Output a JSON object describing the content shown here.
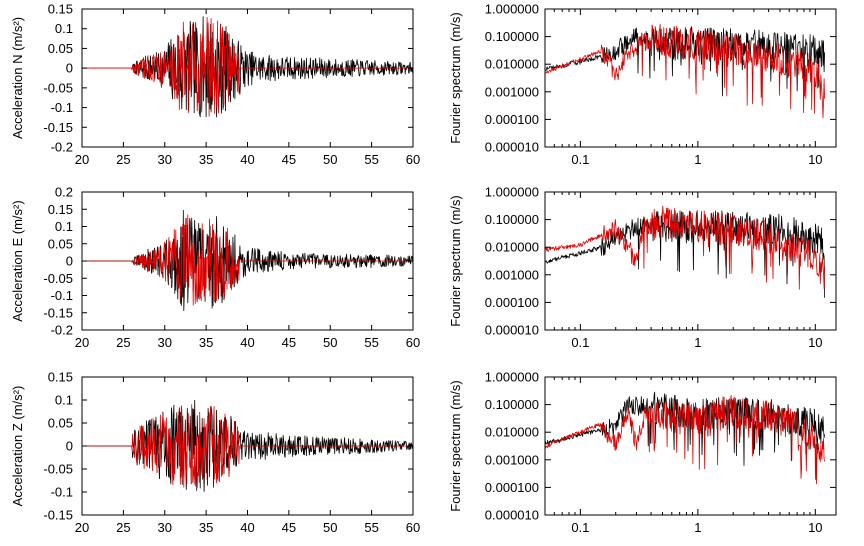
{
  "colors": {
    "observed": "#000000",
    "synthetic": "#e00000"
  },
  "chart_data": [
    {
      "type": "line",
      "component": "N",
      "ylabel": "Acceleration N (m/s²)",
      "xlim": [
        20,
        60
      ],
      "ylim": [
        -0.2,
        0.15
      ],
      "xticks": [
        "20",
        "25",
        "30",
        "35",
        "40",
        "45",
        "50",
        "55",
        "60"
      ],
      "yticks": [
        "0.15",
        "0.1",
        "0.05",
        "0",
        "-0.05",
        "-0.1",
        "-0.15",
        "-0.2"
      ],
      "onset": 26,
      "envelope": [
        [
          26,
          0.008
        ],
        [
          27,
          0.025
        ],
        [
          28,
          0.035
        ],
        [
          29,
          0.04
        ],
        [
          30,
          0.055
        ],
        [
          31,
          0.09
        ],
        [
          32,
          0.13
        ],
        [
          33,
          0.12
        ],
        [
          34,
          0.12
        ],
        [
          35,
          0.14
        ],
        [
          36,
          0.13
        ],
        [
          37,
          0.12
        ],
        [
          38,
          0.09
        ],
        [
          39,
          0.07
        ],
        [
          40,
          0.045
        ],
        [
          42,
          0.035
        ],
        [
          45,
          0.03
        ],
        [
          50,
          0.025
        ],
        [
          55,
          0.02
        ],
        [
          60,
          0.015
        ]
      ],
      "series": [
        {
          "role": "observed",
          "peak": 0.145,
          "trough": -0.16,
          "end": 60
        },
        {
          "role": "synthetic",
          "peak": 0.13,
          "trough": -0.145,
          "end": 39
        }
      ]
    },
    {
      "type": "line",
      "xscale": "log",
      "yscale": "log",
      "ylabel": "Fourier spectrum (m/s)",
      "xlim": [
        0.05,
        15
      ],
      "ylim": [
        1e-05,
        1
      ],
      "xticks": [
        "0.1",
        "1",
        "10"
      ],
      "yticks": [
        "1.000000",
        "0.100000",
        "0.010000",
        "0.001000",
        "0.000100",
        "0.000010"
      ],
      "f_max": 12,
      "series": [
        {
          "role": "observed",
          "shape": [
            [
              0.05,
              0.007
            ],
            [
              0.1,
              0.012
            ],
            [
              0.15,
              0.02
            ],
            [
              0.2,
              0.03
            ],
            [
              0.3,
              0.1
            ],
            [
              0.5,
              0.05
            ],
            [
              1,
              0.06
            ],
            [
              2,
              0.05
            ],
            [
              5,
              0.04
            ],
            [
              10,
              0.03
            ],
            [
              12,
              0.02
            ]
          ]
        },
        {
          "role": "synthetic",
          "shape": [
            [
              0.05,
              0.005
            ],
            [
              0.1,
              0.015
            ],
            [
              0.15,
              0.03
            ],
            [
              0.18,
              0.01
            ],
            [
              0.2,
              0.003
            ],
            [
              0.25,
              0.03
            ],
            [
              0.4,
              0.08
            ],
            [
              1,
              0.05
            ],
            [
              2,
              0.03
            ],
            [
              5,
              0.015
            ],
            [
              10,
              0.005
            ],
            [
              12,
              0.001
            ]
          ]
        }
      ]
    },
    {
      "type": "line",
      "component": "E",
      "ylabel": "Acceleration E (m/s²)",
      "xlim": [
        20,
        60
      ],
      "ylim": [
        -0.2,
        0.2
      ],
      "xticks": [
        "20",
        "25",
        "30",
        "35",
        "40",
        "45",
        "50",
        "55",
        "60"
      ],
      "yticks": [
        "0.2",
        "0.15",
        "0.1",
        "0.05",
        "0",
        "-0.05",
        "-0.1",
        "-0.15",
        "-0.2"
      ],
      "onset": 26,
      "envelope": [
        [
          26,
          0.008
        ],
        [
          27,
          0.02
        ],
        [
          28,
          0.035
        ],
        [
          29,
          0.04
        ],
        [
          30,
          0.06
        ],
        [
          31,
          0.09
        ],
        [
          32,
          0.15
        ],
        [
          33,
          0.14
        ],
        [
          34,
          0.13
        ],
        [
          35,
          0.13
        ],
        [
          36,
          0.14
        ],
        [
          37,
          0.12
        ],
        [
          38,
          0.09
        ],
        [
          39,
          0.06
        ],
        [
          40,
          0.04
        ],
        [
          42,
          0.035
        ],
        [
          45,
          0.025
        ],
        [
          50,
          0.02
        ],
        [
          55,
          0.02
        ],
        [
          60,
          0.015
        ]
      ],
      "series": [
        {
          "role": "observed",
          "peak": 0.165,
          "trough": -0.18,
          "end": 60
        },
        {
          "role": "synthetic",
          "peak": 0.15,
          "trough": -0.16,
          "end": 39
        }
      ]
    },
    {
      "type": "line",
      "xscale": "log",
      "yscale": "log",
      "ylabel": "Fourier spectrum (m/s)",
      "xlim": [
        0.05,
        15
      ],
      "ylim": [
        1e-05,
        1
      ],
      "xticks": [
        "0.1",
        "1",
        "10"
      ],
      "yticks": [
        "1.000000",
        "0.100000",
        "0.010000",
        "0.001000",
        "0.000100",
        "0.000010"
      ],
      "f_max": 12,
      "series": [
        {
          "role": "observed",
          "shape": [
            [
              0.05,
              0.003
            ],
            [
              0.1,
              0.006
            ],
            [
              0.15,
              0.01
            ],
            [
              0.2,
              0.02
            ],
            [
              0.3,
              0.06
            ],
            [
              0.5,
              0.05
            ],
            [
              1,
              0.06
            ],
            [
              2,
              0.05
            ],
            [
              5,
              0.04
            ],
            [
              10,
              0.02
            ],
            [
              12,
              0.01
            ]
          ]
        },
        {
          "role": "synthetic",
          "shape": [
            [
              0.05,
              0.008
            ],
            [
              0.1,
              0.012
            ],
            [
              0.2,
              0.05
            ],
            [
              0.3,
              0.003
            ],
            [
              0.35,
              0.06
            ],
            [
              0.5,
              0.08
            ],
            [
              1,
              0.06
            ],
            [
              2,
              0.04
            ],
            [
              5,
              0.02
            ],
            [
              10,
              0.004
            ],
            [
              12,
              0.001
            ]
          ]
        }
      ]
    },
    {
      "type": "line",
      "component": "Z",
      "ylabel": "Acceleration Z (m/s²)",
      "xlim": [
        20,
        60
      ],
      "ylim": [
        -0.15,
        0.15
      ],
      "xticks": [
        "20",
        "25",
        "30",
        "35",
        "40",
        "45",
        "50",
        "55",
        "60"
      ],
      "yticks": [
        "0.15",
        "0.1",
        "0.05",
        "0",
        "-0.05",
        "-0.1",
        "-0.15"
      ],
      "onset": 26,
      "envelope": [
        [
          26,
          0.03
        ],
        [
          27,
          0.05
        ],
        [
          28,
          0.06
        ],
        [
          29,
          0.07
        ],
        [
          30,
          0.08
        ],
        [
          31,
          0.09
        ],
        [
          32,
          0.1
        ],
        [
          33,
          0.1
        ],
        [
          34,
          0.1
        ],
        [
          35,
          0.1
        ],
        [
          36,
          0.09
        ],
        [
          37,
          0.08
        ],
        [
          38,
          0.07
        ],
        [
          39,
          0.04
        ],
        [
          40,
          0.03
        ],
        [
          42,
          0.03
        ],
        [
          45,
          0.025
        ],
        [
          50,
          0.02
        ],
        [
          55,
          0.015
        ],
        [
          60,
          0.01
        ]
      ],
      "series": [
        {
          "role": "observed",
          "peak": 0.1,
          "trough": -0.13,
          "end": 60
        },
        {
          "role": "synthetic",
          "peak": 0.1,
          "trough": -0.12,
          "end": 39
        }
      ]
    },
    {
      "type": "line",
      "xscale": "log",
      "yscale": "log",
      "ylabel": "Fourier spectrum (m/s)",
      "xlim": [
        0.05,
        15
      ],
      "ylim": [
        1e-05,
        1
      ],
      "xticks": [
        "0.1",
        "1",
        "10"
      ],
      "yticks": [
        "1.000000",
        "0.100000",
        "0.010000",
        "0.001000",
        "0.000100",
        "0.000010"
      ],
      "f_max": 12,
      "series": [
        {
          "role": "observed",
          "shape": [
            [
              0.05,
              0.004
            ],
            [
              0.1,
              0.008
            ],
            [
              0.15,
              0.012
            ],
            [
              0.2,
              0.015
            ],
            [
              0.25,
              0.1
            ],
            [
              0.4,
              0.08
            ],
            [
              1,
              0.04
            ],
            [
              2,
              0.05
            ],
            [
              5,
              0.04
            ],
            [
              10,
              0.02
            ],
            [
              12,
              0.008
            ]
          ]
        },
        {
          "role": "synthetic",
          "shape": [
            [
              0.05,
              0.003
            ],
            [
              0.1,
              0.01
            ],
            [
              0.15,
              0.02
            ],
            [
              0.2,
              0.003
            ],
            [
              0.25,
              0.06
            ],
            [
              0.3,
              0.003
            ],
            [
              0.35,
              0.04
            ],
            [
              1,
              0.03
            ],
            [
              2,
              0.06
            ],
            [
              5,
              0.03
            ],
            [
              10,
              0.006
            ],
            [
              12,
              0.002
            ]
          ]
        }
      ]
    }
  ]
}
